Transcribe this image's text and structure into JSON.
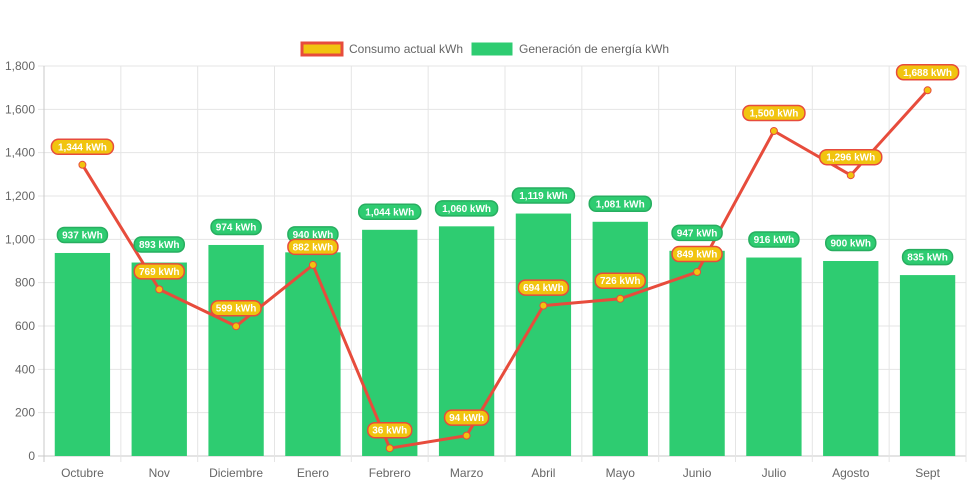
{
  "chart_data": {
    "type": "bar",
    "title": "",
    "xlabel": "",
    "ylabel": "",
    "categories": [
      "Octubre",
      "Nov",
      "Diciembre",
      "Enero",
      "Febrero",
      "Marzo",
      "Abril",
      "Mayo",
      "Junio",
      "Julio",
      "Agosto",
      "Sept"
    ],
    "ylim": [
      0,
      1800
    ],
    "yticks": [
      0,
      200,
      400,
      600,
      800,
      1000,
      1200,
      1400,
      1600,
      1800
    ],
    "ytick_labels": [
      "0",
      "200",
      "400",
      "600",
      "800",
      "1,000",
      "1,200",
      "1,400",
      "1,600",
      "1,800"
    ],
    "grid": true,
    "legend_position": "top-center",
    "unit_suffix": " kWh",
    "series": [
      {
        "name": "Consumo actual kWh",
        "type": "line",
        "color": "#e74c3c",
        "fill": "#f1c40f",
        "values": [
          1344,
          769,
          599,
          882,
          36,
          94,
          694,
          726,
          849,
          1500,
          1296,
          1688
        ],
        "labels": [
          "1,344 kWh",
          "769 kWh",
          "599 kWh",
          "882 kWh",
          "36 kWh",
          "94 kWh",
          "694 kWh",
          "726 kWh",
          "849 kWh",
          "1,500 kWh",
          "1,296 kWh",
          "1,688 kWh"
        ]
      },
      {
        "name": "Generación de energía kWh",
        "type": "bar",
        "color": "#2ecc71",
        "values": [
          937,
          893,
          974,
          940,
          1044,
          1060,
          1119,
          1081,
          947,
          916,
          900,
          835
        ],
        "labels": [
          "937 kWh",
          "893 kWh",
          "974 kWh",
          "940 kWh",
          "1,044 kWh",
          "1,060 kWh",
          "1,119 kWh",
          "1,081 kWh",
          "947 kWh",
          "916 kWh",
          "900 kWh",
          "835 kWh"
        ]
      }
    ]
  }
}
